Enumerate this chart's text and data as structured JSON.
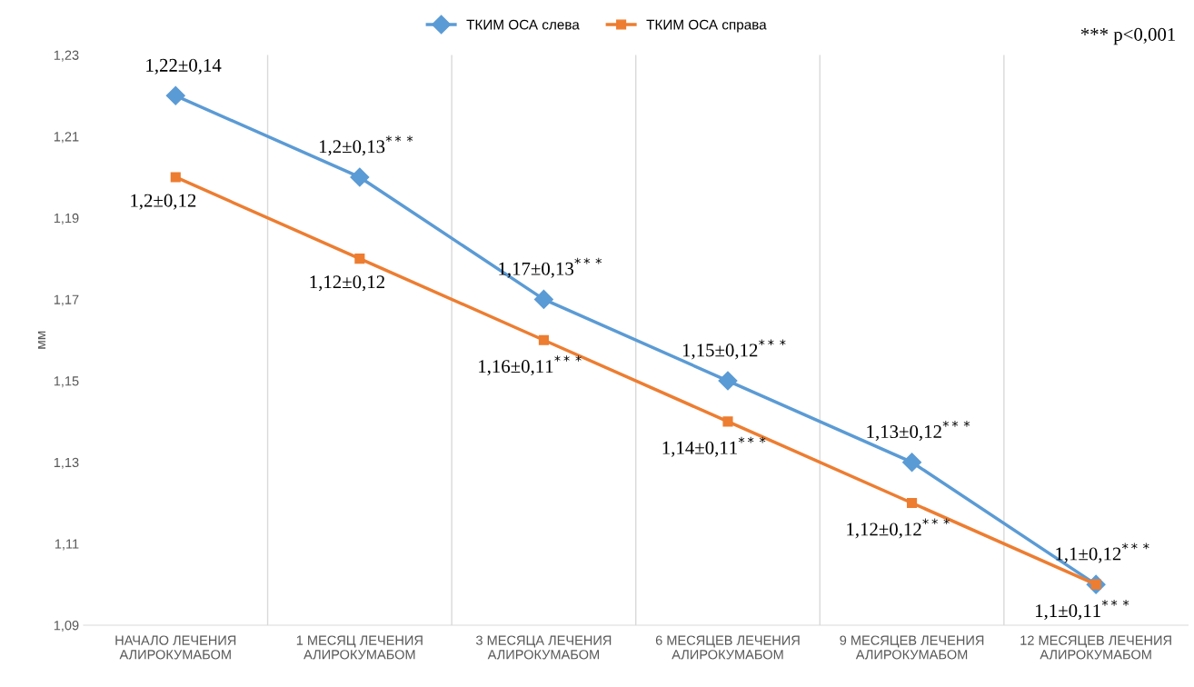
{
  "chart_data": {
    "type": "line",
    "ylabel": "мм",
    "categories": [
      "НАЧАЛО ЛЕЧЕНИЯ\nАЛИРОКУМАБОМ",
      "1 МЕСЯЦ ЛЕЧЕНИЯ\nАЛИРОКУМАБОМ",
      "3 МЕСЯЦА ЛЕЧЕНИЯ\nАЛИРОКУМАБОМ",
      "6 МЕСЯЦЕВ ЛЕЧЕНИЯ\nАЛИРОКУМАБОМ",
      "9 МЕСЯЦЕВ ЛЕЧЕНИЯ\nАЛИРОКУМАБОМ",
      "12 МЕСЯЦЕВ ЛЕЧЕНИЯ\nАЛИРОКУМАБОМ"
    ],
    "series": [
      {
        "name": "ТКИМ ОСА слева",
        "color": "#5b9bd5",
        "marker": "diamond",
        "values": [
          1.22,
          1.2,
          1.17,
          1.15,
          1.13,
          1.1
        ]
      },
      {
        "name": "ТКИМ ОСА справа",
        "color": "#ed7d31",
        "marker": "square",
        "values": [
          1.2,
          1.18,
          1.16,
          1.14,
          1.12,
          1.1
        ]
      }
    ],
    "ylim": [
      1.09,
      1.23
    ],
    "yticks": [
      {
        "value": 1.09,
        "label": "1,09"
      },
      {
        "value": 1.11,
        "label": "1,11"
      },
      {
        "value": 1.13,
        "label": "1,13"
      },
      {
        "value": 1.15,
        "label": "1,15"
      },
      {
        "value": 1.17,
        "label": "1,17"
      },
      {
        "value": 1.19,
        "label": "1,19"
      },
      {
        "value": 1.21,
        "label": "1,21"
      },
      {
        "value": 1.23,
        "label": "1,23"
      }
    ],
    "grid": "x",
    "legend": "top",
    "line_style": "solid",
    "annotations": [
      {
        "text": "1,22±0,14",
        "x": "НАЧАЛО ЛЕЧЕНИЯ\nАЛИРОКУМАБОМ",
        "y": 1.22
      },
      {
        "text": "1,2±0,13$^{***}$",
        "x": "1 МЕСЯЦ ЛЕЧЕНИЯ\nАЛИРОКУМАБОМ",
        "y": 1.2
      },
      {
        "text": "1,17±0,13$^{***}$",
        "x": "3 МЕСЯЦА ЛЕЧЕНИЯ\nАЛИРОКУМАБОМ",
        "y": 1.17
      },
      {
        "text": "1,15±0,12$^{***}$",
        "x": "6 МЕСЯЦЕВ ЛЕЧЕНИЯ\nАЛИРОКУМАБОМ",
        "y": 1.15
      },
      {
        "text": "1,13±0,12$^{***}$",
        "x": "9 МЕСЯЦЕВ ЛЕЧЕНИЯ\nАЛИРОКУМАБОМ",
        "y": 1.13
      },
      {
        "text": "1,1±0,12$^{***}$",
        "x": "12 МЕСЯЦЕВ ЛЕЧЕНИЯ\nАЛИРОКУМАБОМ",
        "y": 1.1
      },
      {
        "text": "1,2±0,12",
        "x": "НАЧАЛО ЛЕЧЕНИЯ\nАЛИРОКУМАБОМ",
        "y": 1.2
      },
      {
        "text": "1,12±0,12",
        "x": "1 МЕСЯЦ ЛЕЧЕНИЯ\nАЛИРОКУМАБОМ",
        "y": 1.18
      },
      {
        "text": "1,16±0,11$^{***}$",
        "x": "3 МЕСЯЦА ЛЕЧЕНИЯ\nАЛИРОКУМАБОМ",
        "y": 1.16
      },
      {
        "text": "1,14±0,11$^{***}$",
        "x": "6 МЕСЯЦЕВ ЛЕЧЕНИЯ\nАЛИРОКУМАБОМ",
        "y": 1.14
      },
      {
        "text": "1,12±0,12$^{***}$",
        "x": "9 МЕСЯЦЕВ ЛЕЧЕНИЯ\nАЛИРОКУМАБОМ",
        "y": 1.12
      },
      {
        "text": "1,1±0,11$^{***}$",
        "x": "12 МЕСЯЦЕВ ЛЕЧЕНИЯ\nАЛИРОКУМАБОМ",
        "y": 1.1
      },
      "*** p<0,001"
    ]
  }
}
